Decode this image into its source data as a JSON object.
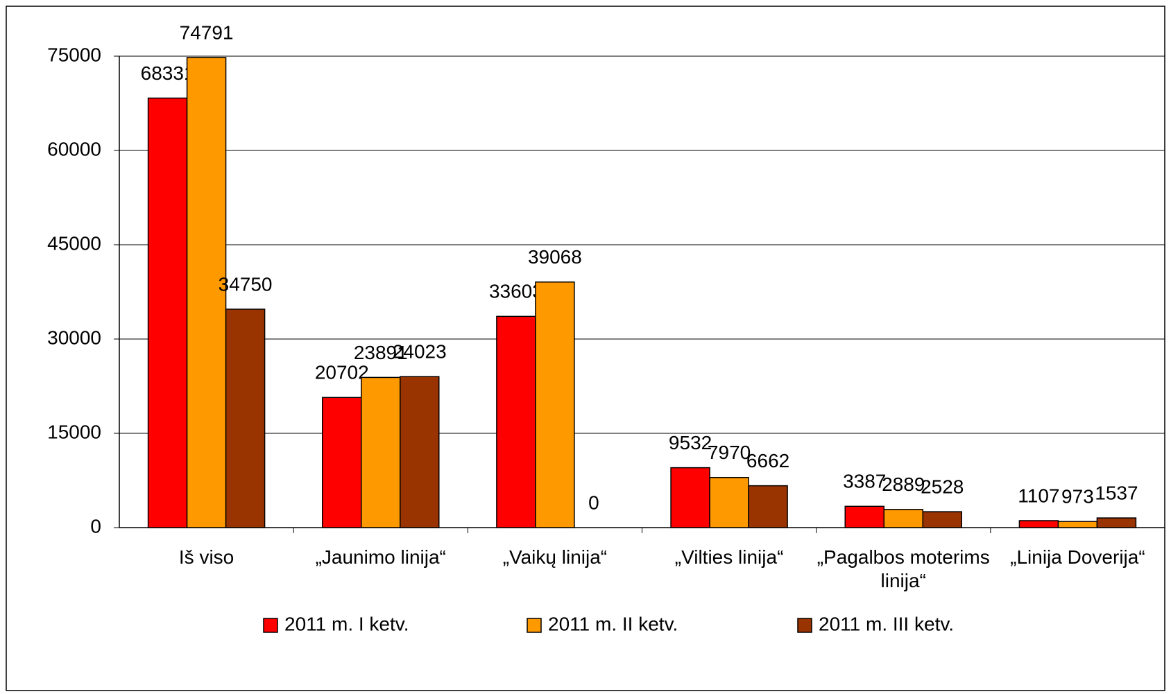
{
  "chart_data": {
    "type": "bar",
    "categories": [
      "Iš viso",
      "„Jaunimo linija“",
      "„Vaikų linija“",
      "„Vilties linija“",
      "„Pagalbos moterims linija“",
      "„Linija Doverija“"
    ],
    "series": [
      {
        "name": "2011 m. I ketv.",
        "color": "#ff0000",
        "values": [
          68331,
          20702,
          33603,
          9532,
          3387,
          1107
        ]
      },
      {
        "name": "2011 m. II ketv.",
        "color": "#ff9900",
        "values": [
          74791,
          23891,
          39068,
          7970,
          2889,
          973
        ]
      },
      {
        "name": "2011 m. III ketv.",
        "color": "#993300",
        "values": [
          34750,
          24023,
          0,
          6662,
          2528,
          1537
        ]
      }
    ],
    "ylim": [
      0,
      75000
    ],
    "yticks": [
      0,
      15000,
      30000,
      45000,
      60000,
      75000
    ],
    "grid": true,
    "legend": "bottom"
  }
}
